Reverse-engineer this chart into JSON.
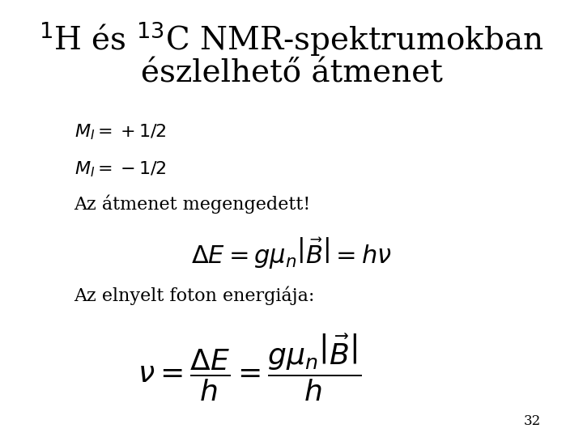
{
  "background_color": "#ffffff",
  "title_line1": "$^{1}$H és $^{13}$C NMR-spektrumokban",
  "title_line2": "észlelhető átmenet",
  "title_fontsize": 28,
  "title_fontstyle": "normal",
  "title_color": "#000000",
  "line1": "$M_{I}=+1/2$",
  "line2": "$M_{I}=-1/2$",
  "line3": "Az átmenet megengedett!",
  "line4": "Az elnyelt foton energiája:",
  "body_fontsize": 16,
  "eq1": "$\\Delta E = g\\mu_{n}\\left|\\vec{B}\\right| = h\\nu$",
  "eq2": "$\\nu = \\dfrac{\\Delta E}{h} = \\dfrac{g\\mu_{n}\\left|\\vec{B}\\right|}{h}$",
  "eq_fontsize": 22,
  "eq2_fontsize": 26,
  "page_number": "32",
  "page_fontsize": 12
}
